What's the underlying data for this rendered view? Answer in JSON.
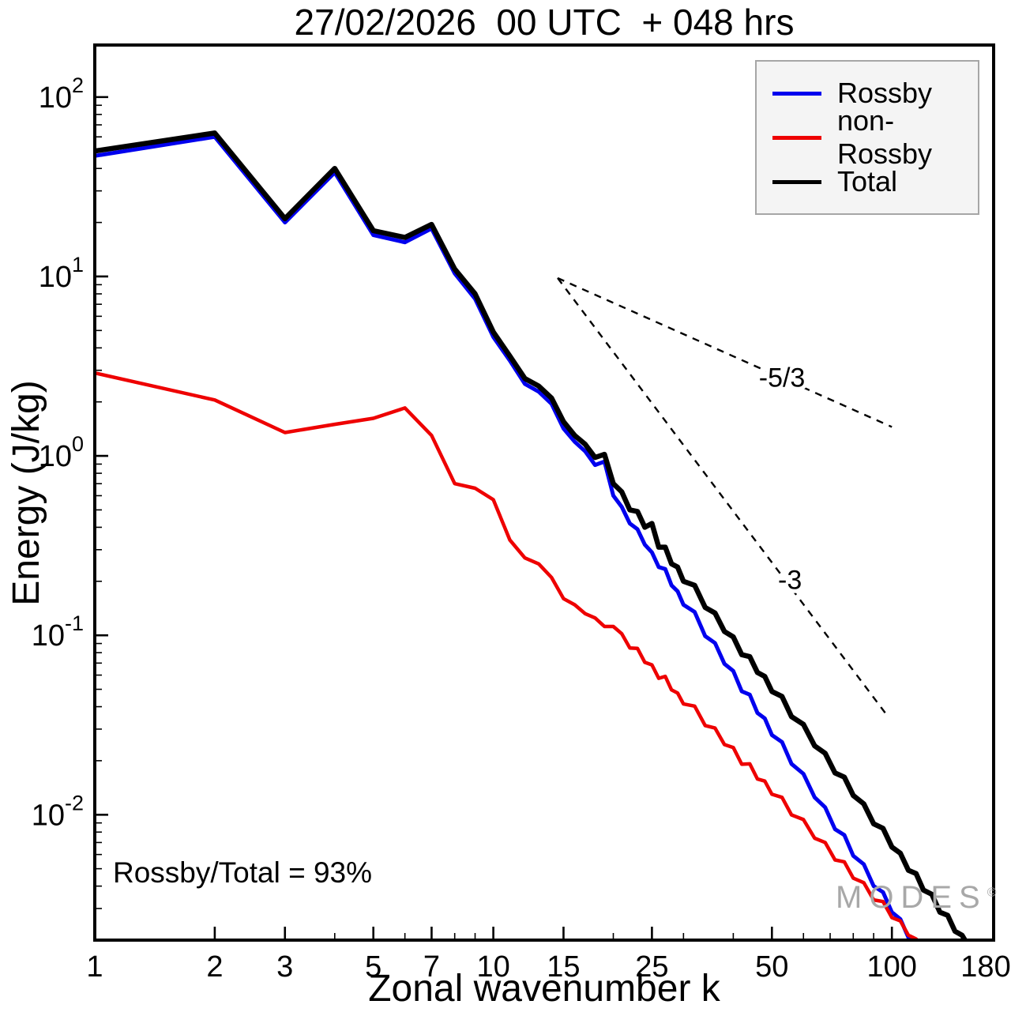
{
  "title": "27/02/2026  00 UTC  + 048 hrs",
  "annotations": {
    "ratio_text": "Rossby/Total = 93%"
  },
  "watermark": {
    "text": "MODES",
    "mark": "©"
  },
  "chart_data": {
    "type": "line",
    "title": "27/02/2026  00 UTC  + 048 hrs",
    "xlabel": "Zonal wavenumber k",
    "ylabel": "Energy (J/kg)",
    "x_scale": "log",
    "y_scale": "log",
    "xlim": [
      1,
      180
    ],
    "ylim": [
      0.002,
      195
    ],
    "grid": false,
    "legend_position": "top-right",
    "x_ticks": [
      1,
      2,
      3,
      5,
      7,
      10,
      15,
      25,
      50,
      100,
      180
    ],
    "y_ticks": [
      {
        "value": 100,
        "mantissa": "10",
        "exponent": "2"
      },
      {
        "value": 10,
        "mantissa": "10",
        "exponent": "1"
      },
      {
        "value": 1,
        "mantissa": "10",
        "exponent": "0"
      },
      {
        "value": 0.1,
        "mantissa": "10",
        "exponent": "-1"
      },
      {
        "value": 0.01,
        "mantissa": "10",
        "exponent": "-2"
      }
    ],
    "reference_lines": [
      {
        "label": "-5/3",
        "x1": 14.5,
        "y1": 9.8,
        "x2": 100,
        "y2": 1.45,
        "label_x": 53,
        "label_y": 2.75
      },
      {
        "label": "-3",
        "x1": 14.5,
        "y1": 9.8,
        "x2": 98,
        "y2": 0.035,
        "label_x": 55.5,
        "label_y": 0.205
      }
    ],
    "series": [
      {
        "name": "Rossby",
        "color": "#0000ee",
        "width": 5,
        "points": [
          [
            1,
            47
          ],
          [
            2,
            60
          ],
          [
            3,
            20
          ],
          [
            4,
            38
          ],
          [
            5,
            17
          ],
          [
            6,
            15.5
          ],
          [
            7,
            18.5
          ],
          [
            8,
            10.4
          ],
          [
            9,
            7.5
          ],
          [
            10,
            4.6
          ],
          [
            11,
            3.4
          ],
          [
            12,
            2.52
          ],
          [
            13,
            2.28
          ],
          [
            14,
            1.95
          ],
          [
            15,
            1.42
          ],
          [
            16,
            1.2
          ],
          [
            17,
            1.06
          ],
          [
            18,
            0.89
          ],
          [
            19,
            0.93
          ],
          [
            20,
            0.6
          ],
          [
            21,
            0.52
          ],
          [
            22,
            0.42
          ],
          [
            23,
            0.39
          ],
          [
            24,
            0.32
          ],
          [
            25,
            0.29
          ],
          [
            26,
            0.24
          ],
          [
            27,
            0.234
          ],
          [
            28,
            0.19
          ],
          [
            29,
            0.176
          ],
          [
            30,
            0.148
          ],
          [
            32,
            0.135
          ],
          [
            34,
            0.099
          ],
          [
            36,
            0.0905
          ],
          [
            38,
            0.0693
          ],
          [
            40,
            0.0633
          ],
          [
            42,
            0.0487
          ],
          [
            44,
            0.0467
          ],
          [
            46,
            0.0369
          ],
          [
            48,
            0.0344
          ],
          [
            50,
            0.0278
          ],
          [
            53,
            0.0254
          ],
          [
            56,
            0.0192
          ],
          [
            60,
            0.0169
          ],
          [
            64,
            0.0125
          ],
          [
            68,
            0.011
          ],
          [
            72,
            0.0083
          ],
          [
            76,
            0.0077
          ],
          [
            80,
            0.0059
          ],
          [
            85,
            0.0053
          ],
          [
            90,
            0.004
          ],
          [
            95,
            0.0037
          ],
          [
            100,
            0.00286
          ],
          [
            105,
            0.00262
          ],
          [
            110,
            0.00207
          ],
          [
            115,
            0.00172
          ],
          [
            118,
            0.0016
          ]
        ]
      },
      {
        "name": "non-Rossby",
        "color": "#ee0000",
        "width": 4.5,
        "points": [
          [
            1,
            2.9
          ],
          [
            2,
            2.05
          ],
          [
            3,
            1.35
          ],
          [
            4,
            1.5
          ],
          [
            5,
            1.62
          ],
          [
            6,
            1.85
          ],
          [
            7,
            1.3
          ],
          [
            8,
            0.7
          ],
          [
            9,
            0.66
          ],
          [
            10,
            0.57
          ],
          [
            11,
            0.34
          ],
          [
            12,
            0.27
          ],
          [
            13,
            0.25
          ],
          [
            14,
            0.21
          ],
          [
            15,
            0.16
          ],
          [
            16,
            0.148
          ],
          [
            17,
            0.132
          ],
          [
            18,
            0.125
          ],
          [
            19,
            0.112
          ],
          [
            20,
            0.112
          ],
          [
            21,
            0.102
          ],
          [
            22,
            0.085
          ],
          [
            23,
            0.0845
          ],
          [
            24,
            0.0707
          ],
          [
            25,
            0.0684
          ],
          [
            26,
            0.0576
          ],
          [
            27,
            0.059
          ],
          [
            28,
            0.0496
          ],
          [
            29,
            0.0477
          ],
          [
            30,
            0.0414
          ],
          [
            32,
            0.0403
          ],
          [
            34,
            0.0314
          ],
          [
            36,
            0.0304
          ],
          [
            38,
            0.0246
          ],
          [
            40,
            0.0237
          ],
          [
            42,
            0.0191
          ],
          [
            44,
            0.0192
          ],
          [
            46,
            0.0158
          ],
          [
            48,
            0.0154
          ],
          [
            50,
            0.013
          ],
          [
            53,
            0.0125
          ],
          [
            56,
            0.00998
          ],
          [
            60,
            0.0094
          ],
          [
            64,
            0.0074
          ],
          [
            68,
            0.007
          ],
          [
            72,
            0.0056
          ],
          [
            76,
            0.00546
          ],
          [
            80,
            0.00443
          ],
          [
            85,
            0.00418
          ],
          [
            90,
            0.00335
          ],
          [
            95,
            0.00328
          ],
          [
            100,
            0.00267
          ],
          [
            105,
            0.00256
          ],
          [
            110,
            0.00213
          ],
          [
            115,
            0.00203
          ],
          [
            120,
            0.00184
          ],
          [
            125,
            0.00162
          ]
        ]
      },
      {
        "name": "Total",
        "color": "#000000",
        "width": 6.5,
        "points": [
          [
            1,
            50
          ],
          [
            2,
            63
          ],
          [
            3,
            21
          ],
          [
            4,
            40
          ],
          [
            5,
            18
          ],
          [
            6,
            16.5
          ],
          [
            7,
            19.5
          ],
          [
            8,
            11
          ],
          [
            9,
            8.0
          ],
          [
            10,
            4.9
          ],
          [
            11,
            3.6
          ],
          [
            12,
            2.7
          ],
          [
            13,
            2.45
          ],
          [
            14,
            2.1
          ],
          [
            15,
            1.55
          ],
          [
            16,
            1.3
          ],
          [
            17,
            1.16
          ],
          [
            18,
            0.98
          ],
          [
            19,
            1.02
          ],
          [
            20,
            0.7
          ],
          [
            21,
            0.63
          ],
          [
            22,
            0.5
          ],
          [
            23,
            0.49
          ],
          [
            24,
            0.4
          ],
          [
            25,
            0.42
          ],
          [
            26,
            0.31
          ],
          [
            27,
            0.31
          ],
          [
            28,
            0.25
          ],
          [
            29,
            0.24
          ],
          [
            30,
            0.2
          ],
          [
            32,
            0.19
          ],
          [
            34,
            0.143
          ],
          [
            36,
            0.133
          ],
          [
            38,
            0.105
          ],
          [
            40,
            0.098
          ],
          [
            42,
            0.078
          ],
          [
            44,
            0.076
          ],
          [
            46,
            0.062
          ],
          [
            48,
            0.059
          ],
          [
            50,
            0.0486
          ],
          [
            53,
            0.0456
          ],
          [
            56,
            0.0352
          ],
          [
            60,
            0.0319
          ],
          [
            64,
            0.0242
          ],
          [
            68,
            0.022
          ],
          [
            72,
            0.0171
          ],
          [
            76,
            0.0162
          ],
          [
            80,
            0.0128
          ],
          [
            85,
            0.0115
          ],
          [
            90,
            0.0089
          ],
          [
            95,
            0.0084
          ],
          [
            100,
            0.0066
          ],
          [
            105,
            0.0061
          ],
          [
            110,
            0.0049
          ],
          [
            115,
            0.0047
          ],
          [
            120,
            0.0038
          ],
          [
            126,
            0.0036
          ],
          [
            132,
            0.00286
          ],
          [
            138,
            0.00275
          ],
          [
            144,
            0.00224
          ],
          [
            150,
            0.00213
          ],
          [
            156,
            0.00184
          ],
          [
            162,
            0.00162
          ]
        ]
      }
    ]
  }
}
